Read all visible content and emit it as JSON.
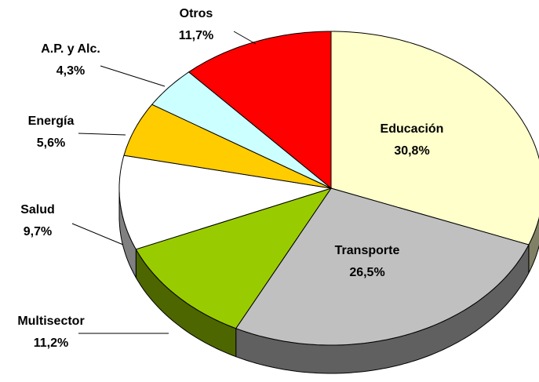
{
  "chart_data": {
    "type": "pie",
    "categories": [
      "Educación",
      "Transporte",
      "Multisector",
      "Salud",
      "Energía",
      "A.P. y Alc.",
      "Otros"
    ],
    "values": [
      30.8,
      26.5,
      11.2,
      9.7,
      5.6,
      4.3,
      11.7
    ],
    "value_labels": [
      "30,8%",
      "26,5%",
      "11,2%",
      "9,7%",
      "5,6%",
      "4,3%",
      "11,7%"
    ],
    "colors": [
      "#ffffcc",
      "#c0c0c0",
      "#99cc00",
      "#ffffff",
      "#ffcc00",
      "#ccffff",
      "#ff0000"
    ]
  }
}
